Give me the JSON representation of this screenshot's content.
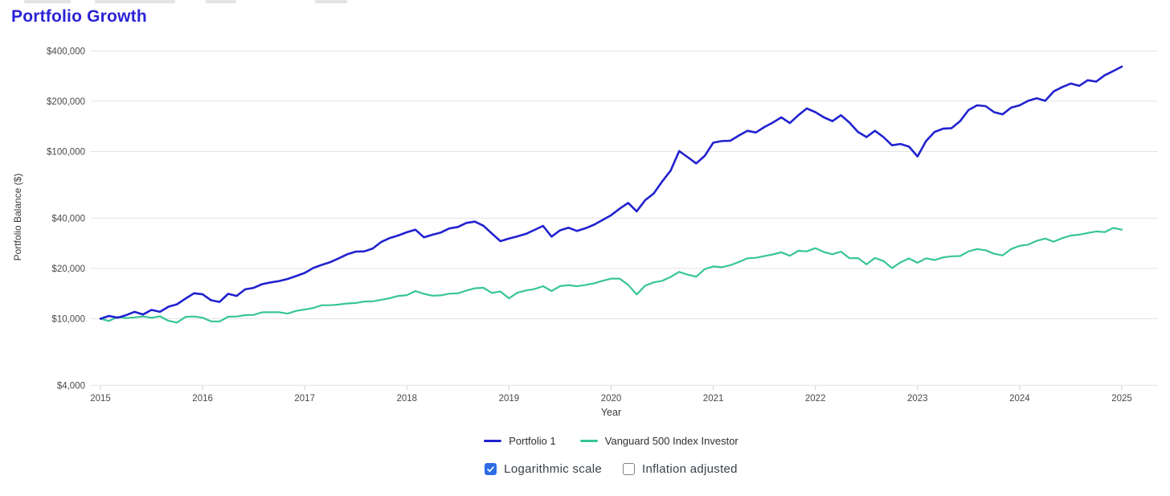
{
  "header": {
    "title": "Portfolio Growth",
    "color": "#2b23d6"
  },
  "chart_data": {
    "type": "line",
    "title": "Portfolio Growth",
    "xlabel": "Year",
    "ylabel": "Portfolio Balance ($)",
    "grid": true,
    "legend_position": "bottom",
    "x_axis": {
      "min": 2015,
      "max": 2025,
      "tick_labels": [
        "2015",
        "2016",
        "2017",
        "2018",
        "2019",
        "2020",
        "2021",
        "2022",
        "2023",
        "2024",
        "2025"
      ]
    },
    "y_axis": {
      "scale": "log",
      "min": 4000,
      "max": 400000,
      "ticks": [
        {
          "value": 400000,
          "label": "$400,000"
        },
        {
          "value": 200000,
          "label": "$200,000"
        },
        {
          "value": 100000,
          "label": "$100,000"
        },
        {
          "value": 40000,
          "label": "$40,000"
        },
        {
          "value": 20000,
          "label": "$20,000"
        },
        {
          "value": 10000,
          "label": "$10,000"
        },
        {
          "value": 4000,
          "label": "$4,000"
        }
      ]
    },
    "sampling": {
      "start_year": 2015,
      "points_per_year": 12,
      "unit": "monthly portfolio balance, USD"
    },
    "series": [
      {
        "name": "Portfolio 1",
        "color": "#2122cf",
        "values": [
          10000,
          10400,
          10150,
          10500,
          11000,
          10600,
          11300,
          11000,
          11800,
          12200,
          13200,
          14200,
          14000,
          12900,
          12600,
          14100,
          13700,
          15000,
          15300,
          16100,
          16500,
          16800,
          17300,
          18000,
          18800,
          20100,
          21000,
          21800,
          23000,
          24300,
          25200,
          25300,
          26300,
          28800,
          30400,
          31500,
          32900,
          34100,
          30700,
          31800,
          32800,
          34700,
          35400,
          37400,
          38100,
          36000,
          32300,
          29100,
          30200,
          31100,
          32200,
          34000,
          35900,
          31000,
          33800,
          35000,
          33500,
          34800,
          36500,
          39000,
          41600,
          45500,
          49300,
          43900,
          51200,
          56100,
          66200,
          76900,
          100700,
          92500,
          84900,
          94200,
          113000,
          115500,
          116000,
          124600,
          133000,
          130000,
          140000,
          149000,
          160000,
          148000,
          165000,
          181000,
          172000,
          160000,
          152000,
          165000,
          149000,
          131000,
          122000,
          133000,
          122000,
          109000,
          111000,
          107000,
          93500,
          115500,
          131000,
          137000,
          138000,
          152000,
          177000,
          189000,
          187000,
          172000,
          167000,
          183000,
          189000,
          201000,
          208000,
          201000,
          229000,
          243000,
          255000,
          247000,
          267000,
          262000,
          286000,
          303000,
          322000
        ]
      },
      {
        "name": "Vanguard 500 Index Investor",
        "color": "#38c596",
        "values": [
          10000,
          9700,
          10250,
          10090,
          10190,
          10320,
          10130,
          10340,
          9720,
          9480,
          10270,
          10310,
          10140,
          9640,
          9630,
          10280,
          10320,
          10510,
          10540,
          10930,
          10940,
          10940,
          10740,
          11140,
          11360,
          11580,
          12040,
          12050,
          12170,
          12340,
          12420,
          12680,
          12720,
          12980,
          13280,
          13700,
          13850,
          14630,
          14090,
          13740,
          13800,
          14130,
          14210,
          14740,
          15220,
          15320,
          14270,
          14560,
          13250,
          14310,
          14770,
          15050,
          15650,
          14650,
          15670,
          15890,
          15640,
          15940,
          16290,
          16870,
          17380,
          17370,
          15950,
          13970,
          15760,
          16510,
          16840,
          17790,
          19070,
          18340,
          17850,
          19790,
          20550,
          20340,
          20910,
          21830,
          22990,
          23150,
          23680,
          24250,
          24980,
          23800,
          25470,
          25290,
          26430,
          25050,
          24300,
          25200,
          23010,
          23060,
          21140,
          23090,
          22140,
          20100,
          21730,
          22950,
          21620,
          22980,
          22430,
          23260,
          23630,
          23720,
          25290,
          26100,
          25680,
          24450,
          23930,
          26110,
          27290,
          27750,
          29220,
          30160,
          28920,
          30370,
          31460,
          31840,
          32600,
          33290,
          32990,
          34930,
          34100
        ]
      }
    ]
  },
  "controls": {
    "accent_color": "#2e6ce6",
    "checkboxes": [
      {
        "label": "Logarithmic scale",
        "checked": true
      },
      {
        "label": "Inflation adjusted",
        "checked": false
      }
    ]
  }
}
